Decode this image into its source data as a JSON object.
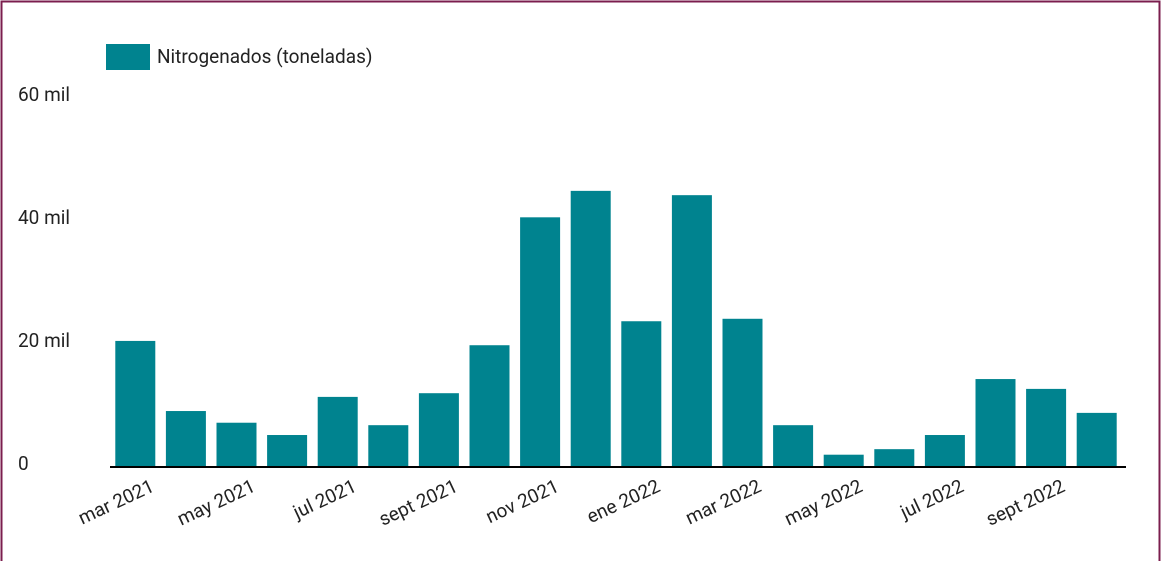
{
  "chart_data": {
    "type": "bar",
    "legend": "Nitrogenados (toneladas)",
    "color": "#00838f",
    "categories": [
      "mar 2021",
      null,
      "may 2021",
      null,
      "jul 2021",
      null,
      "sept 2021",
      null,
      "nov 2021",
      null,
      "ene 2022",
      null,
      "mar 2022",
      null,
      "may 2022",
      null,
      "jul 2022",
      null,
      "sept 2022",
      null
    ],
    "values": [
      20500,
      9100,
      7200,
      5200,
      11400,
      6800,
      12000,
      19800,
      40600,
      44900,
      23700,
      44200,
      24100,
      6800,
      2000,
      2900,
      5200,
      14300,
      12700,
      8800
    ],
    "ylim": [
      0,
      60000
    ],
    "yticks": [
      0,
      {
        "value": 20000,
        "label": "20 mil"
      },
      {
        "value": 40000,
        "label": "40 mil"
      },
      {
        "value": 60000,
        "label": "60 mil"
      }
    ]
  }
}
